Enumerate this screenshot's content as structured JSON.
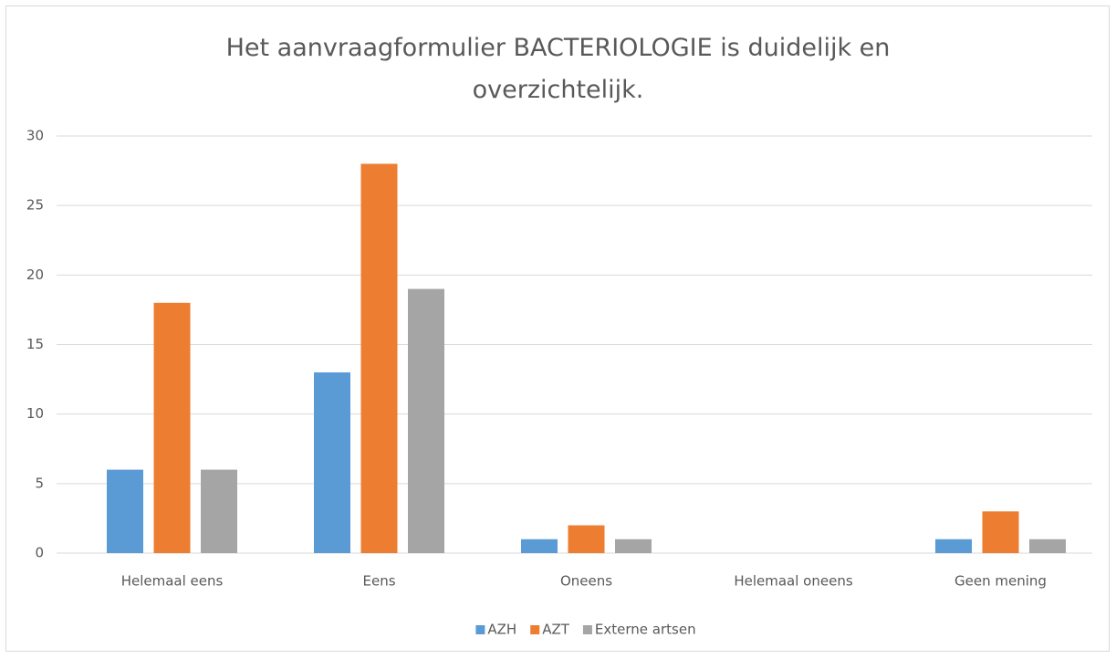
{
  "chart_data": {
    "type": "bar",
    "title": "Het aanvraagformulier BACTERIOLOGIE is duidelijk en overzichtelijk.",
    "categories": [
      "Helemaal eens",
      "Eens",
      "Oneens",
      "Helemaal oneens",
      "Geen mening"
    ],
    "series": [
      {
        "name": "AZH",
        "color": "#5b9bd5",
        "values": [
          6,
          13,
          1,
          0,
          1
        ]
      },
      {
        "name": "AZT",
        "color": "#ed7d31",
        "values": [
          18,
          28,
          2,
          0,
          3
        ]
      },
      {
        "name": "Externe artsen",
        "color": "#a5a5a5",
        "values": [
          6,
          19,
          1,
          0,
          1
        ]
      }
    ],
    "ylim": [
      0,
      30
    ],
    "yticks": [
      0,
      5,
      10,
      15,
      20,
      25,
      30
    ],
    "grid": true,
    "legend": "bottom"
  }
}
